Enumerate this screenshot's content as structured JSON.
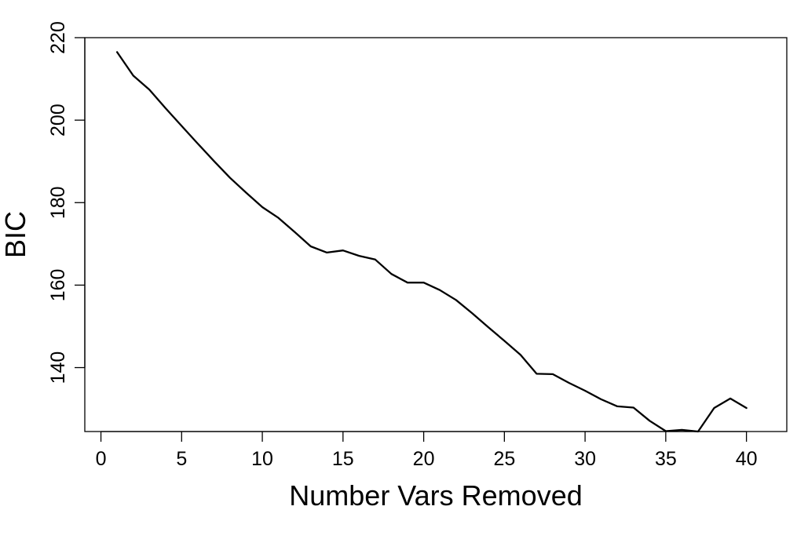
{
  "chart_data": {
    "type": "line",
    "title": "",
    "xlabel": "Number Vars Removed",
    "ylabel": "BIC",
    "xlim": [
      -1,
      42.5
    ],
    "ylim": [
      124.5,
      220
    ],
    "x_ticks": [
      0,
      5,
      10,
      15,
      20,
      25,
      30,
      35,
      40
    ],
    "x_tick_labels": [
      "0",
      "5",
      "10",
      "15",
      "20",
      "25",
      "30",
      "35",
      "40"
    ],
    "y_ticks": [
      140,
      160,
      180,
      200,
      220
    ],
    "y_tick_labels": [
      "140",
      "160",
      "180",
      "200",
      "220"
    ],
    "grid": false,
    "legend": "none",
    "line_color": "#000000",
    "series": [
      {
        "x": [
          1,
          2,
          3,
          4,
          5,
          6,
          7,
          8,
          9,
          10,
          11,
          12,
          13,
          14,
          15,
          16,
          17,
          18,
          19,
          20,
          21,
          22,
          23,
          24,
          25,
          26,
          27,
          28,
          29,
          30,
          31,
          32,
          33,
          34,
          35,
          36,
          37,
          38,
          39,
          40
        ],
        "values": [
          216.5,
          210.8,
          207.4,
          202.9,
          198.6,
          194.3,
          190.1,
          186.0,
          182.4,
          178.9,
          176.3,
          172.9,
          169.4,
          167.9,
          168.4,
          167.1,
          166.2,
          162.7,
          160.6,
          160.6,
          158.8,
          156.4,
          153.2,
          149.8,
          146.5,
          143.1,
          138.5,
          138.4,
          136.3,
          134.4,
          132.3,
          130.6,
          130.3,
          127.1,
          124.6,
          124.9,
          124.5,
          130.2,
          132.5,
          130.2
        ]
      }
    ]
  }
}
